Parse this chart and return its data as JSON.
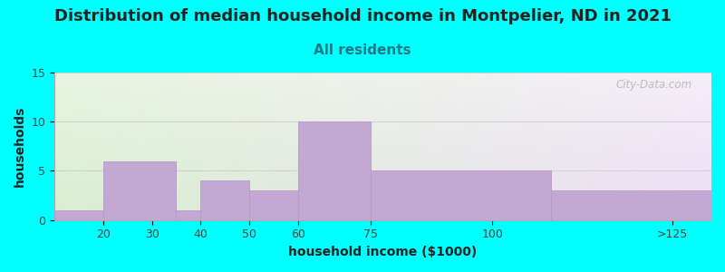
{
  "title": "Distribution of median household income in Montpelier, ND in 2021",
  "subtitle": "All residents",
  "xlabel": "household income ($1000)",
  "ylabel": "households",
  "background_color": "#00FFFF",
  "bar_color": "#C4A8D4",
  "bar_edge_color": "#B899C8",
  "ylim": [
    0,
    15
  ],
  "yticks": [
    0,
    5,
    10,
    15
  ],
  "title_fontsize": 13,
  "subtitle_fontsize": 11,
  "subtitle_color": "#227788",
  "title_color": "#222222",
  "axis_label_fontsize": 10,
  "tick_label_fontsize": 9,
  "tick_label_color": "#444444",
  "watermark": "City-Data.com",
  "watermark_color": "#aaaaaa",
  "plot_bg_top_left": "#e8f5e0",
  "plot_bg_top_right": "#f5eef8",
  "plot_bg_bottom_left": "#d8eed0",
  "plot_bg_bottom_right": "#ecddf5",
  "grid_color": "#cccccc",
  "bar_left_edges": [
    10,
    20,
    35,
    40,
    50,
    60,
    75,
    112
  ],
  "bar_right_edges": [
    20,
    35,
    40,
    50,
    60,
    75,
    112,
    145
  ],
  "bar_values": [
    1,
    6,
    1,
    4,
    3,
    10,
    5,
    3
  ],
  "xtick_positions": [
    20,
    30,
    40,
    50,
    60,
    75,
    100,
    137
  ],
  "xtick_labels": [
    "20",
    "30",
    "40",
    "50",
    "60",
    "75",
    "100",
    ">125"
  ],
  "xlim": [
    10,
    145
  ]
}
